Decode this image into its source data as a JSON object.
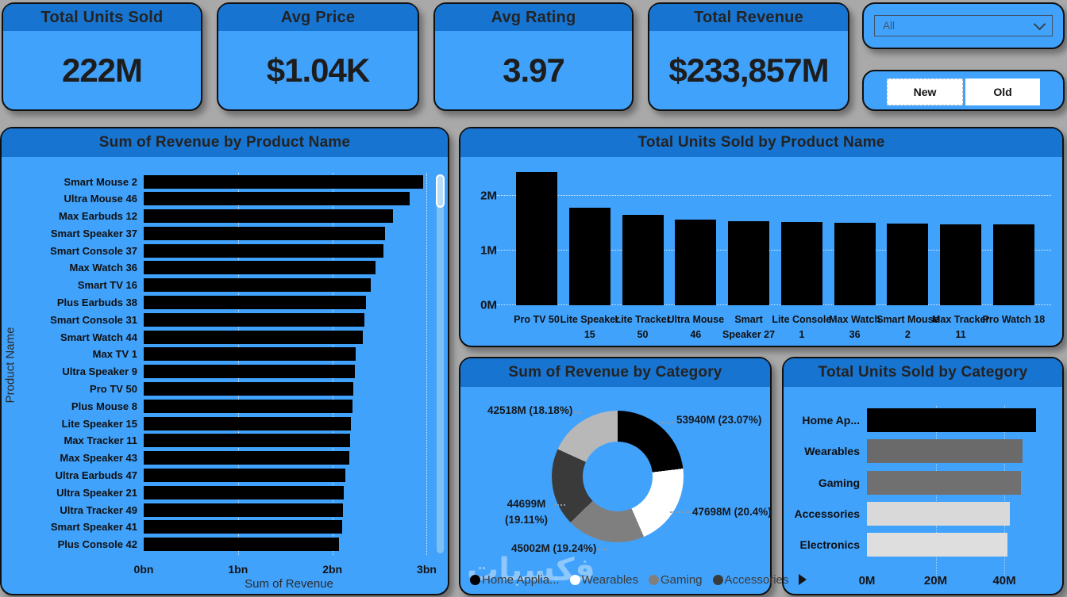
{
  "kpi_cards": [
    {
      "title": "Total Units Sold",
      "value": "222M"
    },
    {
      "title": "Avg Price",
      "value": "$1.04K"
    },
    {
      "title": "Avg Rating",
      "value": "3.97"
    },
    {
      "title": "Total Revenue",
      "value": "$233,857M"
    }
  ],
  "filter": {
    "selected": "All"
  },
  "toggle": {
    "new_label": "New",
    "old_label": "Old"
  },
  "watermark": "فكسبات",
  "colors": {
    "page_background": "#a9a9a9",
    "panel_body": "#41a2fc",
    "panel_header": "#1774d1",
    "bar_black": "#000000",
    "gridline": "#ffffff",
    "scroll_track": "#7fc0f2",
    "scroll_thumb": "#b9dcf8"
  },
  "chart_data": [
    {
      "id": "revenue_by_product",
      "type": "bar",
      "orientation": "horizontal",
      "title": "Sum of Revenue by Product Name",
      "xlabel": "Sum of Revenue",
      "ylabel": "Product Name",
      "unit": "bn",
      "xmax": 3.08,
      "x_ticks": [
        {
          "label": "0bn",
          "value": 0
        },
        {
          "label": "1bn",
          "value": 1
        },
        {
          "label": "2bn",
          "value": 2
        },
        {
          "label": "3bn",
          "value": 3
        }
      ],
      "bar_color": "#000000",
      "grid": true,
      "scrollbar": true,
      "categories": [
        "Smart Mouse 2",
        "Ultra Mouse 46",
        "Max Earbuds 12",
        "Smart Speaker 37",
        "Smart Console 37",
        "Max Watch 36",
        "Smart TV 16",
        "Plus Earbuds 38",
        "Smart Console 31",
        "Smart Watch 44",
        "Max TV 1",
        "Ultra Speaker 9",
        "Pro TV 50",
        "Plus Mouse 8",
        "Lite Speaker 15",
        "Max Tracker 11",
        "Max Speaker 43",
        "Ultra Earbuds 47",
        "Ultra Speaker 21",
        "Ultra Tracker 49",
        "Smart Speaker 41",
        "Plus Console 42"
      ],
      "values": [
        2.96,
        2.82,
        2.64,
        2.56,
        2.54,
        2.46,
        2.41,
        2.36,
        2.34,
        2.32,
        2.25,
        2.24,
        2.22,
        2.21,
        2.2,
        2.19,
        2.18,
        2.14,
        2.12,
        2.11,
        2.1,
        2.07
      ]
    },
    {
      "id": "units_by_product",
      "type": "bar",
      "orientation": "vertical",
      "title": "Total Units Sold by Product Name",
      "unit": "M",
      "ymax": 2.65,
      "y_ticks": [
        {
          "label": "0M",
          "value": 0
        },
        {
          "label": "1M",
          "value": 1
        },
        {
          "label": "2M",
          "value": 2
        }
      ],
      "bar_color": "#000000",
      "grid": true,
      "categories": [
        "Pro TV 50",
        "Lite Speaker 15",
        "Lite Tracker 50",
        "Ultra Mouse 46",
        "Smart Speaker 27",
        "Lite Console 1",
        "Max Watch 36",
        "Smart Mouse 2",
        "Max Tracker 11",
        "Pro Watch 18"
      ],
      "values": [
        2.44,
        1.78,
        1.65,
        1.57,
        1.53,
        1.52,
        1.5,
        1.49,
        1.48,
        1.48
      ]
    },
    {
      "id": "revenue_by_category",
      "type": "pie",
      "title": "Sum of Revenue by Category",
      "unit": "M",
      "slices": [
        {
          "label": "Home Appliances",
          "value": 53940,
          "pct": 23.07,
          "value_label": "53940M (23.07%)",
          "color": "#000000"
        },
        {
          "label": "Wearables",
          "value": 47698,
          "pct": 20.4,
          "value_label": "47698M (20.4%)",
          "color": "#ffffff"
        },
        {
          "label": "Gaming",
          "value": 45002,
          "pct": 19.24,
          "value_label": "45002M (19.24%)",
          "color": "#7f7f7f"
        },
        {
          "label": "Accessories",
          "value": 44699,
          "pct": 19.11,
          "value_label": "44699M (19.11%)",
          "color": "#3a3a3a"
        },
        {
          "label": "Electronics",
          "value": 42518,
          "pct": 18.18,
          "value_label": "42518M (18.18%)",
          "color": "#b8b8b8"
        }
      ],
      "legend": [
        "Home Applia...",
        "Wearables",
        "Gaming",
        "Accessories"
      ],
      "legend_position": "bottom"
    },
    {
      "id": "units_by_category",
      "type": "bar",
      "orientation": "horizontal",
      "title": "Total Units Sold by Category",
      "unit": "M",
      "xmax": 53.4,
      "x_ticks": [
        {
          "label": "0M",
          "value": 0
        },
        {
          "label": "20M",
          "value": 20
        },
        {
          "label": "40M",
          "value": 40
        }
      ],
      "grid": true,
      "categories": [
        "Home Ap...",
        "Wearables",
        "Gaming",
        "Accessories",
        "Electronics"
      ],
      "values": [
        49.3,
        45.4,
        44.9,
        41.5,
        41.0
      ],
      "bar_colors": [
        "#000000",
        "#6a6a6a",
        "#707070",
        "#d9d9d9",
        "#dedede"
      ]
    }
  ]
}
